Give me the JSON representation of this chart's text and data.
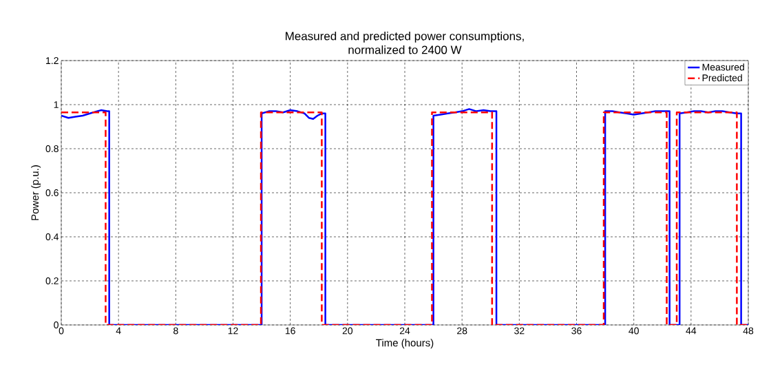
{
  "chart_data": {
    "type": "line",
    "title": "Measured and predicted power consumptions,\nnormalized to 2400 W",
    "xlabel": "Time (hours)",
    "ylabel": "Power (p.u.)",
    "xlim": [
      0,
      48
    ],
    "ylim": [
      0,
      1.2
    ],
    "xticks": [
      0,
      4,
      8,
      12,
      16,
      20,
      24,
      28,
      32,
      36,
      40,
      44,
      48
    ],
    "yticks": [
      0,
      0.2,
      0.4,
      0.6,
      0.8,
      1,
      1.2
    ],
    "grid": true,
    "legend": "top right",
    "series": [
      {
        "name": "Measured",
        "color": "#0000ff",
        "line_style": "solid",
        "x": [
          0,
          0.5,
          1,
          1.5,
          2,
          2.5,
          2.8,
          3.2,
          3.35,
          3.35,
          14.0,
          14.0,
          14.5,
          15,
          15.5,
          16,
          16.5,
          17,
          17.3,
          17.6,
          17.9,
          18.2,
          18.45,
          18.45,
          26.0,
          26.0,
          26.5,
          27,
          27.5,
          28,
          28.5,
          29,
          29.5,
          30,
          30.4,
          30.4,
          38.0,
          38.0,
          38.5,
          39,
          39.5,
          40,
          40.5,
          41,
          41.5,
          42,
          42.5,
          42.5,
          43.2,
          43.2,
          43.7,
          44.2,
          44.7,
          45.2,
          45.7,
          46.2,
          46.7,
          47.2,
          47.5,
          47.5,
          48
        ],
        "values": [
          0.95,
          0.94,
          0.945,
          0.95,
          0.96,
          0.97,
          0.975,
          0.97,
          0.97,
          0,
          0,
          0.96,
          0.97,
          0.97,
          0.965,
          0.975,
          0.97,
          0.96,
          0.94,
          0.935,
          0.95,
          0.96,
          0.96,
          0,
          0,
          0.95,
          0.955,
          0.96,
          0.965,
          0.97,
          0.98,
          0.97,
          0.975,
          0.97,
          0.97,
          0,
          0,
          0.97,
          0.97,
          0.965,
          0.96,
          0.955,
          0.96,
          0.965,
          0.97,
          0.97,
          0.97,
          0,
          0,
          0.96,
          0.965,
          0.97,
          0.97,
          0.965,
          0.97,
          0.97,
          0.965,
          0.96,
          0.96,
          0,
          0
        ]
      },
      {
        "name": "Predicted",
        "color": "#ff0000",
        "line_style": "dashed",
        "x": [
          0,
          3.1,
          3.1,
          13.95,
          13.95,
          18.2,
          18.2,
          25.9,
          25.9,
          30.1,
          30.1,
          37.9,
          37.9,
          42.3,
          42.3,
          43.0,
          43.0,
          47.2,
          47.2,
          48
        ],
        "values": [
          0.965,
          0.965,
          0,
          0,
          0.965,
          0.965,
          0,
          0,
          0.965,
          0.965,
          0,
          0,
          0.965,
          0.965,
          0,
          0,
          0.965,
          0.965,
          0,
          0
        ]
      }
    ]
  }
}
